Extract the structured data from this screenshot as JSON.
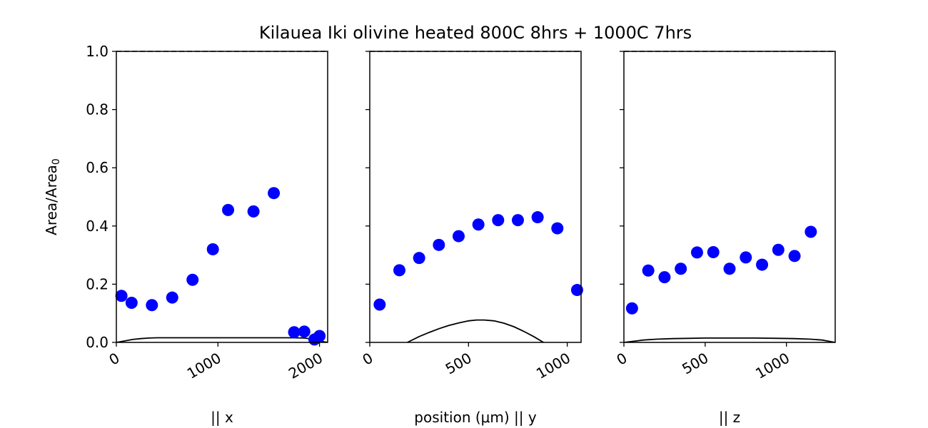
{
  "title": "Kilauea Iki olivine heated 800C 8hrs + 1000C 7hrs",
  "ylabel_main": "Area/Area",
  "ylabel_sub": "0",
  "colors": {
    "points": "#0000ff",
    "curve": "#000000",
    "axes": "#000000"
  },
  "chart_data": [
    {
      "type": "scatter",
      "xlabel": "|| x",
      "xlim": [
        0,
        2080
      ],
      "ylim": [
        0,
        1.0
      ],
      "xticks": [
        0,
        1000,
        2000
      ],
      "yticks": [
        0.0,
        0.2,
        0.4,
        0.6,
        0.8,
        1.0
      ],
      "yticklabels": [
        "0.0",
        "0.2",
        "0.4",
        "0.6",
        "0.8",
        "1.0"
      ],
      "show_yticklabels": true,
      "reference_line": {
        "y": 1.0,
        "style": "dashed"
      },
      "points": {
        "x": [
          50,
          150,
          350,
          550,
          750,
          950,
          1100,
          1350,
          1550,
          1750,
          1850,
          1950,
          2000
        ],
        "y": [
          0.16,
          0.136,
          0.128,
          0.154,
          0.215,
          0.32,
          0.455,
          0.45,
          0.513,
          0.035,
          0.037,
          0.01,
          0.022
        ]
      },
      "curve": {
        "x": [
          0,
          80,
          160,
          240,
          320,
          400,
          600,
          1000,
          1400,
          1700,
          1850,
          1950,
          2000,
          2080
        ],
        "y": [
          0.0,
          0.005,
          0.01,
          0.013,
          0.015,
          0.016,
          0.016,
          0.016,
          0.016,
          0.016,
          0.015,
          0.01,
          0.005,
          0.0
        ]
      }
    },
    {
      "type": "scatter",
      "xlabel": "position (μm) || y",
      "xlim": [
        0,
        1070
      ],
      "ylim": [
        0,
        1.0
      ],
      "xticks": [
        0,
        500,
        1000
      ],
      "yticks": [
        0.0,
        0.2,
        0.4,
        0.6,
        0.8,
        1.0
      ],
      "show_yticklabels": false,
      "reference_line": {
        "y": 1.0,
        "style": "dashed"
      },
      "points": {
        "x": [
          50,
          150,
          250,
          350,
          450,
          550,
          650,
          750,
          850,
          950,
          1050
        ],
        "y": [
          0.13,
          0.248,
          0.29,
          0.335,
          0.365,
          0.405,
          0.42,
          0.42,
          0.43,
          0.392,
          0.18
        ]
      },
      "curve": {
        "x": [
          190,
          250,
          300,
          350,
          400,
          450,
          500,
          540,
          580,
          630,
          680,
          730,
          780,
          830,
          880
        ],
        "y": [
          0.0,
          0.02,
          0.034,
          0.047,
          0.058,
          0.067,
          0.074,
          0.077,
          0.077,
          0.074,
          0.066,
          0.054,
          0.038,
          0.02,
          0.0
        ]
      }
    },
    {
      "type": "scatter",
      "xlabel": "|| z",
      "xlim": [
        0,
        1300
      ],
      "ylim": [
        0,
        1.0
      ],
      "xticks": [
        0,
        500,
        1000
      ],
      "yticks": [
        0.0,
        0.2,
        0.4,
        0.6,
        0.8,
        1.0
      ],
      "show_yticklabels": false,
      "reference_line": {
        "y": 1.0,
        "style": "dashed"
      },
      "points": {
        "x": [
          50,
          150,
          250,
          350,
          450,
          550,
          650,
          750,
          850,
          950,
          1050,
          1150
        ],
        "y": [
          0.117,
          0.247,
          0.224,
          0.253,
          0.309,
          0.31,
          0.253,
          0.292,
          0.267,
          0.318,
          0.297,
          0.38
        ]
      },
      "curve": {
        "x": [
          0,
          60,
          120,
          200,
          300,
          400,
          500,
          650,
          800,
          950,
          1050,
          1150,
          1220,
          1260,
          1300
        ],
        "y": [
          0.0,
          0.004,
          0.008,
          0.011,
          0.013,
          0.014,
          0.015,
          0.015,
          0.015,
          0.014,
          0.013,
          0.011,
          0.008,
          0.004,
          0.0
        ]
      }
    }
  ]
}
